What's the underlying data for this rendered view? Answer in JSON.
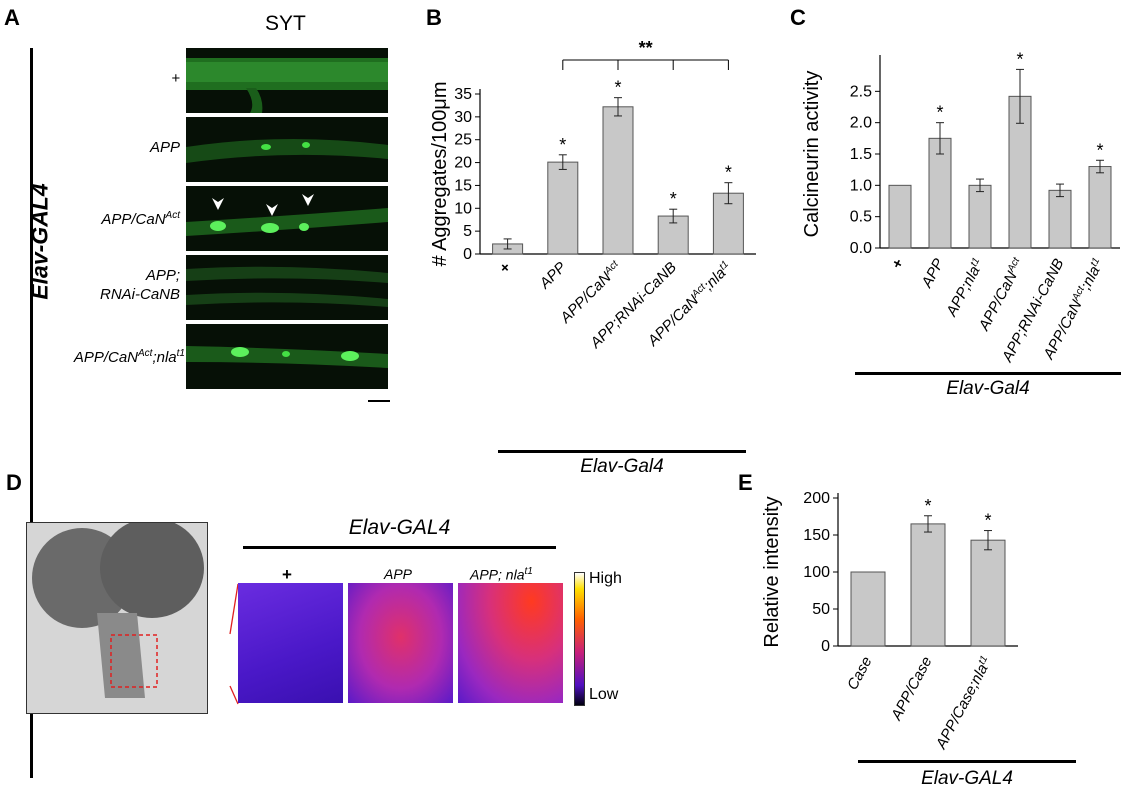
{
  "panelA": {
    "letter": "A",
    "title": "SYT",
    "side_label": "Elav-GAL4",
    "rows": [
      {
        "base": "+",
        "sup": "",
        "tail": ""
      },
      {
        "base": "APP",
        "sup": "",
        "tail": ""
      },
      {
        "base": "APP/CaN",
        "sup": "Act",
        "tail": ""
      },
      {
        "base": "APP;",
        "sup": "",
        "tail": "",
        "line2": "RNAi-CaNB"
      },
      {
        "base": "APP/CaN",
        "sup": "Act",
        "tail": ";nla",
        "sup2": "t1"
      }
    ]
  },
  "panelB": {
    "letter": "B",
    "group_label": "Elav-Gal4",
    "significance": "**",
    "chart_data": {
      "type": "bar",
      "categories": [
        "+",
        "APP",
        "APP/CaN^Act",
        "APP;RNAi-CaNB",
        "APP/CaN^Act;nla^t1"
      ],
      "values": [
        2.2,
        20.1,
        32.2,
        8.3,
        13.3
      ],
      "errors": [
        1.1,
        1.6,
        2.0,
        1.5,
        2.3
      ],
      "stars": [
        "",
        "*",
        "*",
        "*",
        "*"
      ],
      "ylabel": "# Aggregates/100μm",
      "ylim": [
        0,
        35
      ],
      "yticks": [
        0,
        5,
        10,
        15,
        20,
        25,
        30,
        35
      ]
    }
  },
  "panelC": {
    "letter": "C",
    "group_label": "Elav-Gal4",
    "chart_data": {
      "type": "bar",
      "categories": [
        "+",
        "APP",
        "APP;nla^t1",
        "APP/CaN^Act",
        "APP;RNAi-CaNB",
        "APP/CaN^Act;nla^t1"
      ],
      "values": [
        1.0,
        1.75,
        1.0,
        2.42,
        0.92,
        1.3
      ],
      "errors": [
        0,
        0.25,
        0.1,
        0.43,
        0.1,
        0.1
      ],
      "stars": [
        "",
        "*",
        "",
        "*",
        "",
        "*"
      ],
      "ylabel": "Calcineurin activity",
      "ylim": [
        0,
        3.0
      ],
      "yticks": [
        "0.0",
        "0.5",
        "1.0",
        "1.5",
        "2.0",
        "2.5"
      ]
    }
  },
  "panelD": {
    "letter": "D",
    "group_label": "Elav-GAL4",
    "images": [
      {
        "label": "+"
      },
      {
        "label": "APP"
      },
      {
        "label": "APP; nla",
        "sup": "t1"
      }
    ],
    "scale_high": "High",
    "scale_low": "Low"
  },
  "panelE": {
    "letter": "E",
    "group_label": "Elav-GAL4",
    "chart_data": {
      "type": "bar",
      "categories": [
        "Case",
        "APP/Case",
        "APP/Case;nla^t1"
      ],
      "values": [
        100,
        165,
        143
      ],
      "errors": [
        0,
        11,
        13
      ],
      "stars": [
        "",
        "*",
        "*"
      ],
      "ylabel": "Relative intensity",
      "ylim": [
        0,
        200
      ],
      "yticks": [
        0,
        50,
        100,
        150,
        200
      ]
    }
  },
  "colors": {
    "bar_fill": "#c8c8c8",
    "micro_green": "#3bd23b",
    "heat_low": "#3b10c8",
    "heat_high": "#ffe000"
  }
}
